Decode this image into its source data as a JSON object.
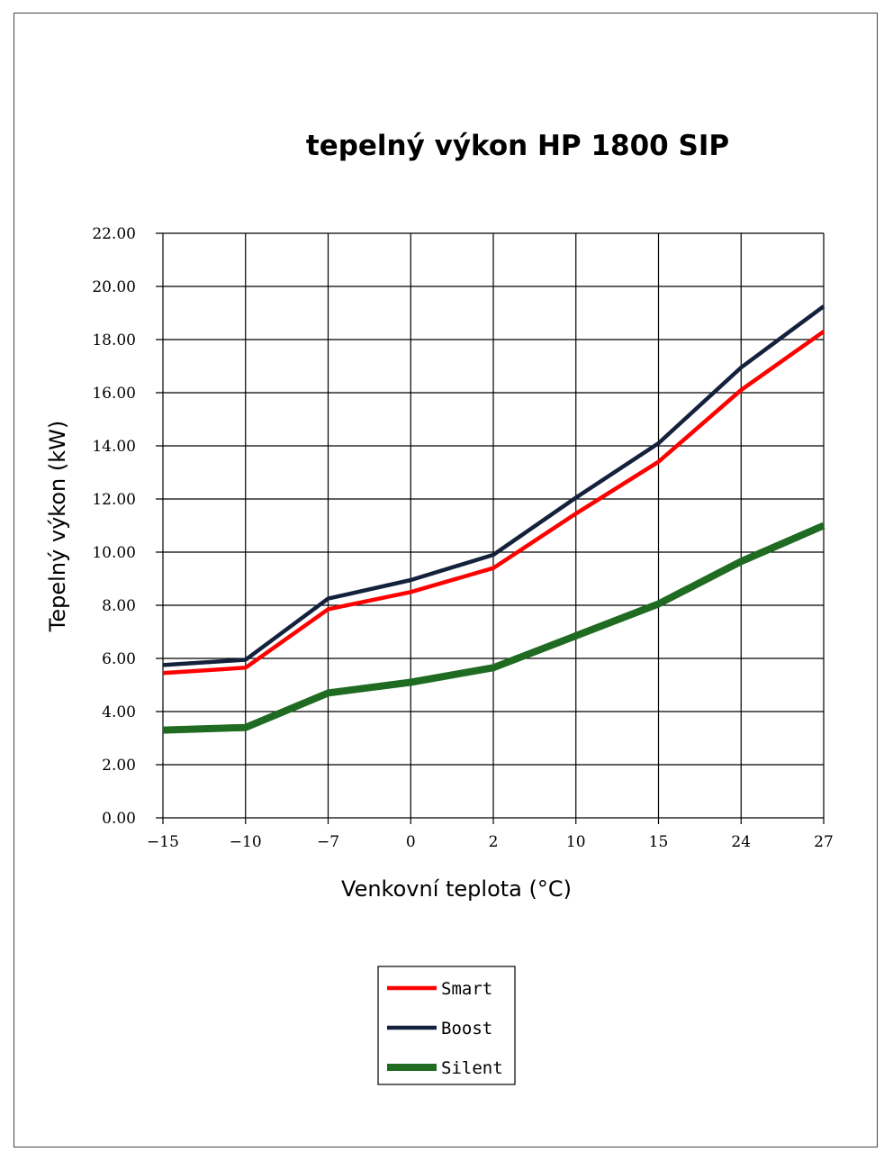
{
  "chart_data": {
    "type": "line",
    "title": "tepelný výkon HP 1800 SIP",
    "xlabel": "Venkovní teplota (°C)",
    "ylabel": "Tepelný výkon (kW)",
    "categories": [
      "−15",
      "−10",
      "−7",
      "0",
      "2",
      "10",
      "15",
      "24",
      "27"
    ],
    "ylim": [
      0,
      22
    ],
    "yticks": [
      "0.00",
      "2.00",
      "4.00",
      "6.00",
      "8.00",
      "10.00",
      "12.00",
      "14.00",
      "16.00",
      "18.00",
      "20.00",
      "22.00"
    ],
    "grid": true,
    "legend_position": "bottom-center",
    "series": [
      {
        "name": "Smart",
        "color": "#ff0000",
        "values": [
          5.45,
          5.65,
          7.85,
          8.5,
          9.4,
          11.45,
          13.4,
          16.1,
          18.3
        ]
      },
      {
        "name": "Boost",
        "color": "#14213d",
        "values": [
          5.75,
          5.95,
          8.25,
          8.95,
          9.9,
          12.05,
          14.1,
          16.95,
          19.25
        ]
      },
      {
        "name": "Silent",
        "color": "#1e6b21",
        "values": [
          3.3,
          3.4,
          4.7,
          5.1,
          5.65,
          6.85,
          8.05,
          9.65,
          11.0
        ]
      }
    ]
  }
}
